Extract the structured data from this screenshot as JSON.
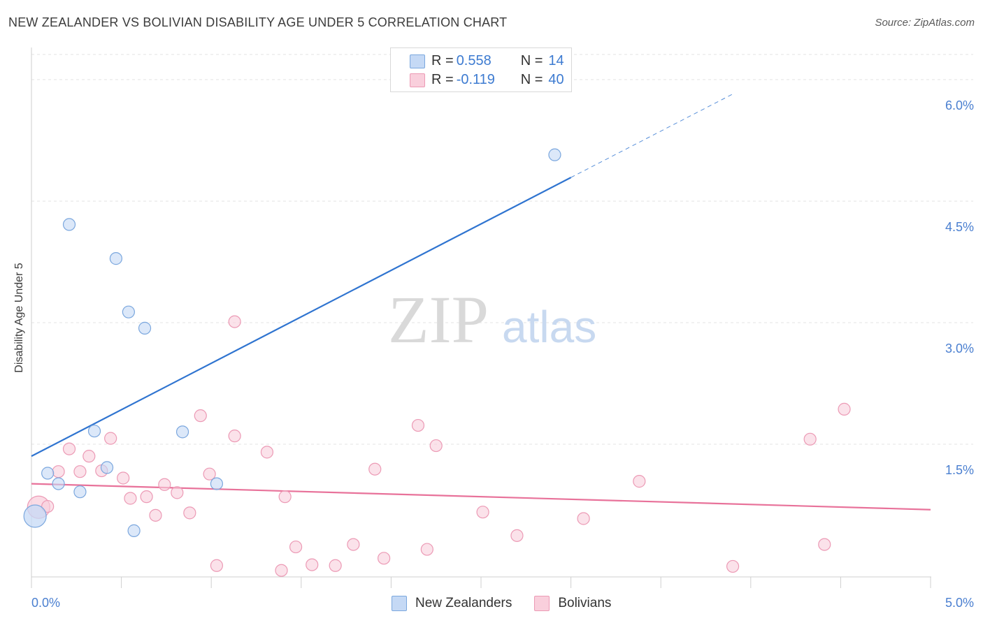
{
  "title": "NEW ZEALANDER VS BOLIVIAN DISABILITY AGE UNDER 5 CORRELATION CHART",
  "source": "Source: ZipAtlas.com",
  "watermark": {
    "zip": "ZIP",
    "atlas": "atlas"
  },
  "colors": {
    "blue_fill": "#c5d9f5",
    "blue_stroke": "#7ba7de",
    "blue_line": "#2f74d0",
    "pink_fill": "#f9cfdc",
    "pink_stroke": "#ec9ab5",
    "pink_line": "#e8729a",
    "tick_text": "#4a7fd0"
  },
  "stats": [
    {
      "r_label": "R = ",
      "r_value": "0.558",
      "n_label": "N = ",
      "n_value": "14"
    },
    {
      "r_label": "R = ",
      "r_value": "-0.119",
      "n_label": "N = ",
      "n_value": "40"
    }
  ],
  "chart_data": {
    "type": "scatter",
    "title": "NEW ZEALANDER VS BOLIVIAN DISABILITY AGE UNDER 5 CORRELATION CHART",
    "xlabel": "",
    "ylabel": "Disability Age Under 5",
    "xlim": [
      0.0,
      5.0
    ],
    "ylim": [
      0.0,
      6.15
    ],
    "x_tick_labels": [
      "0.0%",
      "5.0%"
    ],
    "y_ticks": [
      {
        "value": 1.5,
        "label": "1.5%"
      },
      {
        "value": 3.0,
        "label": "3.0%"
      },
      {
        "value": 4.5,
        "label": "4.5%"
      },
      {
        "value": 6.0,
        "label": "6.0%"
      }
    ],
    "grid": true,
    "legend_position": "bottom-center",
    "series": [
      {
        "name": "New Zealanders",
        "color": "#7ba7de",
        "points": [
          {
            "x": 0.02,
            "y": 0.75,
            "big": true
          },
          {
            "x": 0.09,
            "y": 1.28
          },
          {
            "x": 0.15,
            "y": 1.15
          },
          {
            "x": 0.21,
            "y": 4.35
          },
          {
            "x": 0.27,
            "y": 1.05
          },
          {
            "x": 0.35,
            "y": 1.8
          },
          {
            "x": 0.42,
            "y": 1.35
          },
          {
            "x": 0.47,
            "y": 3.93
          },
          {
            "x": 0.54,
            "y": 3.27
          },
          {
            "x": 0.57,
            "y": 0.57
          },
          {
            "x": 0.63,
            "y": 3.07
          },
          {
            "x": 0.84,
            "y": 1.79
          },
          {
            "x": 1.03,
            "y": 1.15
          },
          {
            "x": 2.91,
            "y": 5.21
          }
        ],
        "trend": {
          "x0": 0.0,
          "y0": 1.49,
          "x1": 3.0,
          "y1": 4.93,
          "dashed_to_x": 3.9,
          "dashed_to_y": 5.96
        }
      },
      {
        "name": "Bolivians",
        "color": "#ec9ab5",
        "points": [
          {
            "x": 0.04,
            "y": 0.86,
            "big": true
          },
          {
            "x": 0.09,
            "y": 0.87
          },
          {
            "x": 0.15,
            "y": 1.3
          },
          {
            "x": 0.21,
            "y": 1.58
          },
          {
            "x": 0.27,
            "y": 1.3
          },
          {
            "x": 0.32,
            "y": 1.49
          },
          {
            "x": 0.39,
            "y": 1.31
          },
          {
            "x": 0.44,
            "y": 1.71
          },
          {
            "x": 0.51,
            "y": 1.22
          },
          {
            "x": 0.55,
            "y": 0.97
          },
          {
            "x": 0.64,
            "y": 0.99
          },
          {
            "x": 0.69,
            "y": 0.76
          },
          {
            "x": 0.74,
            "y": 1.14
          },
          {
            "x": 0.81,
            "y": 1.04
          },
          {
            "x": 0.88,
            "y": 0.79
          },
          {
            "x": 0.94,
            "y": 1.99
          },
          {
            "x": 0.99,
            "y": 1.27
          },
          {
            "x": 1.03,
            "y": 0.14
          },
          {
            "x": 1.13,
            "y": 1.74
          },
          {
            "x": 1.13,
            "y": 3.15
          },
          {
            "x": 1.31,
            "y": 1.54
          },
          {
            "x": 1.39,
            "y": 0.08
          },
          {
            "x": 1.41,
            "y": 0.99
          },
          {
            "x": 1.47,
            "y": 0.37
          },
          {
            "x": 1.56,
            "y": 0.15
          },
          {
            "x": 1.69,
            "y": 0.14
          },
          {
            "x": 1.79,
            "y": 0.4
          },
          {
            "x": 1.91,
            "y": 1.33
          },
          {
            "x": 1.96,
            "y": 0.23
          },
          {
            "x": 2.15,
            "y": 1.87
          },
          {
            "x": 2.2,
            "y": 0.34
          },
          {
            "x": 2.25,
            "y": 1.62
          },
          {
            "x": 2.51,
            "y": 0.8
          },
          {
            "x": 2.7,
            "y": 0.51
          },
          {
            "x": 3.07,
            "y": 0.72
          },
          {
            "x": 3.38,
            "y": 1.18
          },
          {
            "x": 3.9,
            "y": 0.13
          },
          {
            "x": 4.33,
            "y": 1.7
          },
          {
            "x": 4.41,
            "y": 0.4
          },
          {
            "x": 4.52,
            "y": 2.07
          }
        ],
        "trend": {
          "x0": 0.0,
          "y0": 1.15,
          "x1": 5.0,
          "y1": 0.83
        }
      }
    ]
  }
}
